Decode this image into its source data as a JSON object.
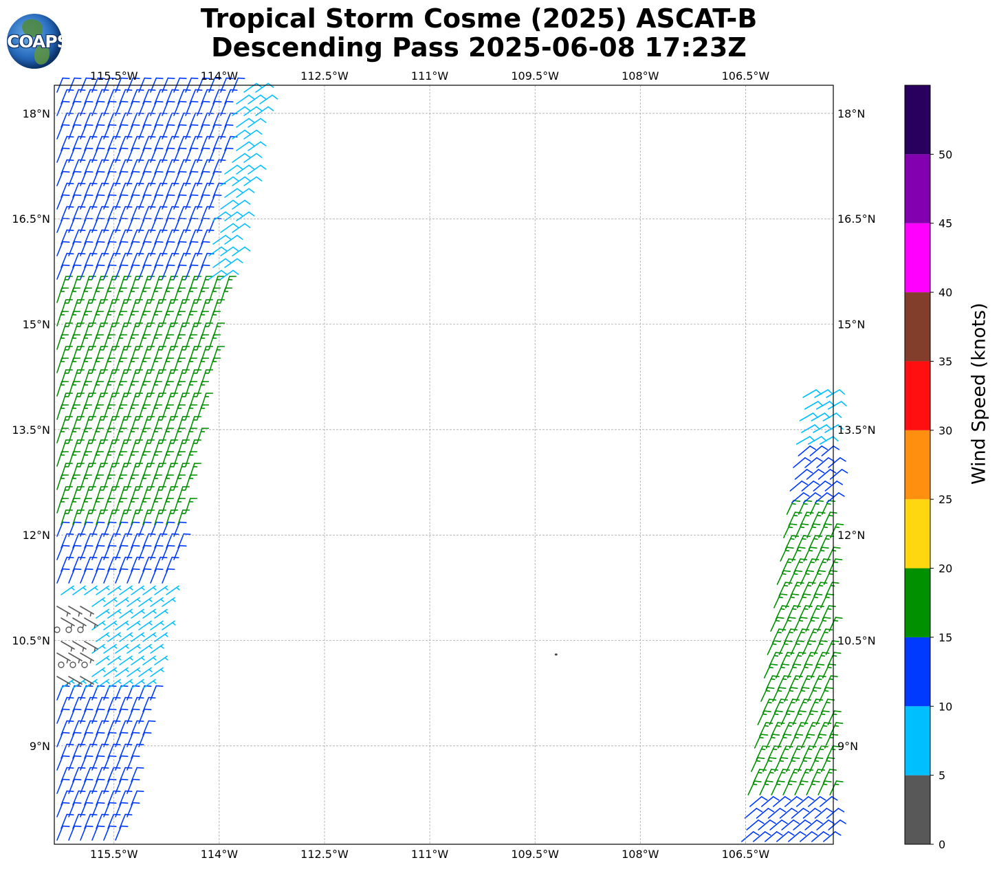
{
  "title": {
    "line1": "Tropical Storm Cosme (2025) ASCAT-B",
    "line2": "Descending Pass 2025-06-08 17:23Z"
  },
  "logo": {
    "text": "COAPS",
    "icon": "globe-logo-icon"
  },
  "map": {
    "lon_ticks": [
      {
        "lon": -115.5,
        "label": "115.5°W"
      },
      {
        "lon": -114.0,
        "label": "114°W"
      },
      {
        "lon": -112.5,
        "label": "112.5°W"
      },
      {
        "lon": -111.0,
        "label": "111°W"
      },
      {
        "lon": -109.5,
        "label": "109.5°W"
      },
      {
        "lon": -108.0,
        "label": "108°W"
      },
      {
        "lon": -106.5,
        "label": "106.5°W"
      }
    ],
    "lat_ticks": [
      {
        "lat": 18.0,
        "label": "18°N"
      },
      {
        "lat": 16.5,
        "label": "16.5°N"
      },
      {
        "lat": 15.0,
        "label": "15°N"
      },
      {
        "lat": 13.5,
        "label": "13.5°N"
      },
      {
        "lat": 12.0,
        "label": "12°N"
      },
      {
        "lat": 10.5,
        "label": "10.5°N"
      },
      {
        "lat": 9.0,
        "label": "9°N"
      }
    ],
    "lon_range": [
      -116.35,
      -105.25
    ],
    "lat_range": [
      7.6,
      18.4
    ],
    "grid": true,
    "grid_style": "dashed-gray",
    "island": {
      "lon": -109.2,
      "lat": 10.3
    }
  },
  "colorbar": {
    "label": "Wind Speed (knots)",
    "ticks": [
      "0",
      "5",
      "10",
      "15",
      "20",
      "25",
      "30",
      "35",
      "40",
      "45",
      "50"
    ],
    "bands": [
      {
        "min": 0,
        "max": 5,
        "color": "#585858"
      },
      {
        "min": 5,
        "max": 10,
        "color": "#00bfff"
      },
      {
        "min": 10,
        "max": 15,
        "color": "#0039ff"
      },
      {
        "min": 15,
        "max": 20,
        "color": "#009000"
      },
      {
        "min": 20,
        "max": 25,
        "color": "#ffd710"
      },
      {
        "min": 25,
        "max": 30,
        "color": "#ff8f0e"
      },
      {
        "min": 30,
        "max": 35,
        "color": "#ff0f10"
      },
      {
        "min": 35,
        "max": 40,
        "color": "#823e2b"
      },
      {
        "min": 40,
        "max": 45,
        "color": "#ff00ff"
      },
      {
        "min": 45,
        "max": 50,
        "color": "#8300b0"
      },
      {
        "min": 50,
        "max": 55,
        "color": "#2a005f"
      }
    ]
  },
  "wind_swaths": {
    "west": {
      "lat_range": [
        7.6,
        18.4
      ],
      "lon_edge_at_bottom": [
        -116.35,
        -115.35
      ],
      "lon_edge_at_top": [
        -116.35,
        -113.35
      ],
      "speed_profile": [
        {
          "lat_min": 15.6,
          "lat_max": 18.4,
          "speed": 12,
          "note_right_edge_speed": 9
        },
        {
          "lat_min": 12.0,
          "lat_max": 15.6,
          "speed": 17
        },
        {
          "lat_min": 11.2,
          "lat_max": 12.0,
          "speed": 12
        },
        {
          "lat_min": 9.8,
          "lat_max": 11.2,
          "speed": 7
        },
        {
          "lat_min": 7.6,
          "lat_max": 9.8,
          "speed": 12
        }
      ],
      "calm_zone": {
        "lat_min": 10.0,
        "lat_max": 11.0,
        "speed": 3
      }
    },
    "east": {
      "lat_range": [
        7.6,
        14.1
      ],
      "lon_edge_at_bottom": [
        -106.6,
        -105.25
      ],
      "lon_edge_at_top": [
        -105.7,
        -105.25
      ],
      "speed_profile": [
        {
          "lat_min": 13.2,
          "lat_max": 14.1,
          "speed": 8
        },
        {
          "lat_min": 12.4,
          "lat_max": 13.2,
          "speed": 12
        },
        {
          "lat_min": 8.2,
          "lat_max": 12.4,
          "speed": 17
        },
        {
          "lat_min": 7.6,
          "lat_max": 8.2,
          "speed": 12
        }
      ]
    }
  }
}
